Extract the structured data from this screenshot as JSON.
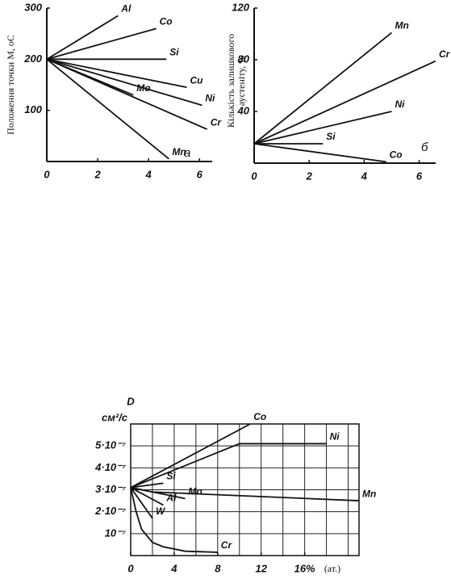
{
  "chart_data": [
    {
      "type": "line",
      "y_label": [
        "Положення точки М, оС"
      ],
      "panel_label": "а",
      "xlim": [
        0,
        6.5
      ],
      "ylim": [
        0,
        300
      ],
      "xticks": [
        0,
        2,
        4,
        6
      ],
      "yticks": [
        100,
        200,
        300
      ],
      "grid": false,
      "frame": false,
      "series": [
        {
          "name": "Al",
          "color": "#111",
          "x": [
            0,
            2.8
          ],
          "values": [
            200,
            285
          ]
        },
        {
          "name": "Co",
          "color": "#111",
          "x": [
            0,
            4.3
          ],
          "values": [
            200,
            260
          ]
        },
        {
          "name": "Si",
          "color": "#111",
          "x": [
            0,
            4.7
          ],
          "values": [
            200,
            200
          ]
        },
        {
          "name": "Cu",
          "color": "#111",
          "x": [
            0,
            5.5
          ],
          "values": [
            200,
            145
          ]
        },
        {
          "name": "Ni",
          "color": "#111",
          "x": [
            0,
            6.1
          ],
          "values": [
            200,
            110
          ]
        },
        {
          "name": "Cr",
          "color": "#111",
          "x": [
            0,
            6.3
          ],
          "values": [
            200,
            63
          ]
        },
        {
          "name": "Mo",
          "color": "#111",
          "x": [
            0,
            3.4
          ],
          "values": [
            200,
            130
          ]
        },
        {
          "name": "Mn",
          "color": "#111",
          "x": [
            0,
            4.8
          ],
          "values": [
            200,
            5
          ]
        }
      ]
    },
    {
      "type": "line",
      "y_label": [
        "Кількість залишкового",
        "аустеніту, %"
      ],
      "panel_label": "б",
      "xlim": [
        0,
        6.6
      ],
      "ylim": [
        0,
        120
      ],
      "xticks": [
        0,
        2,
        4,
        6
      ],
      "yticks": [
        40,
        80,
        120
      ],
      "grid": false,
      "frame": false,
      "series": [
        {
          "name": "Mn",
          "color": "#111",
          "x": [
            0,
            5.0
          ],
          "values": [
            15,
            101
          ]
        },
        {
          "name": "Cr",
          "color": "#111",
          "x": [
            0,
            6.6
          ],
          "values": [
            15,
            79
          ]
        },
        {
          "name": "Ni",
          "color": "#111",
          "x": [
            0,
            5.0
          ],
          "values": [
            15,
            40
          ]
        },
        {
          "name": "Si",
          "color": "#111",
          "x": [
            0,
            2.5
          ],
          "values": [
            15,
            15
          ]
        },
        {
          "name": "Co",
          "color": "#111",
          "x": [
            0,
            4.8
          ],
          "values": [
            15,
            1
          ]
        }
      ]
    },
    {
      "type": "line",
      "y_label": [
        "D",
        "см²/с"
      ],
      "x_label": "(ат.)",
      "xlim": [
        0,
        21
      ],
      "ylim": [
        0,
        6e-07
      ],
      "xticks": [
        0,
        4,
        8,
        12,
        {
          "value": 16,
          "label": "16%"
        }
      ],
      "xgrid": [
        2,
        4,
        6,
        8,
        10,
        12,
        14,
        16,
        18,
        20
      ],
      "yticks": [
        {
          "value": 1e-07,
          "label": "10⁻⁷"
        },
        {
          "value": 2e-07,
          "label": "2·10⁻⁷"
        },
        {
          "value": 3e-07,
          "label": "3·10⁻⁷"
        },
        {
          "value": 4e-07,
          "label": "4·10⁻⁷"
        },
        {
          "value": 5e-07,
          "label": "5·10⁻⁷"
        }
      ],
      "grid": true,
      "frame": true,
      "series": [
        {
          "name": "Co",
          "color": "#111",
          "x": [
            0,
            11
          ],
          "values": [
            3.1e-07,
            6e-07
          ]
        },
        {
          "name": "Ni",
          "color": "#111",
          "x": [
            0,
            10,
            18
          ],
          "values": [
            3.1e-07,
            5.1e-07,
            5.1e-07
          ]
        },
        {
          "name": "Si",
          "color": "#111",
          "x": [
            0,
            3
          ],
          "values": [
            3.1e-07,
            3.3e-07
          ]
        },
        {
          "name": "Mn",
          "color": "#111",
          "x": [
            0,
            2,
            21
          ],
          "values": [
            3.1e-07,
            2.9e-07,
            2.5e-07
          ]
        },
        {
          "name": "Mo",
          "color": "#111",
          "x": [
            0,
            5
          ],
          "values": [
            3.1e-07,
            2.6e-07
          ]
        },
        {
          "name": "Al",
          "color": "#111",
          "x": [
            0,
            3
          ],
          "values": [
            3.1e-07,
            2.3e-07
          ]
        },
        {
          "name": "W",
          "color": "#111",
          "x": [
            0,
            2
          ],
          "values": [
            3.1e-07,
            1.7e-07
          ]
        },
        {
          "name": "Cr",
          "color": "#111",
          "x": [
            0,
            0.5,
            1,
            2,
            3,
            5,
            8
          ],
          "values": [
            3.1e-07,
            2e-07,
            1.2e-07,
            6e-08,
            4e-08,
            2e-08,
            1.5e-08
          ]
        }
      ]
    }
  ]
}
